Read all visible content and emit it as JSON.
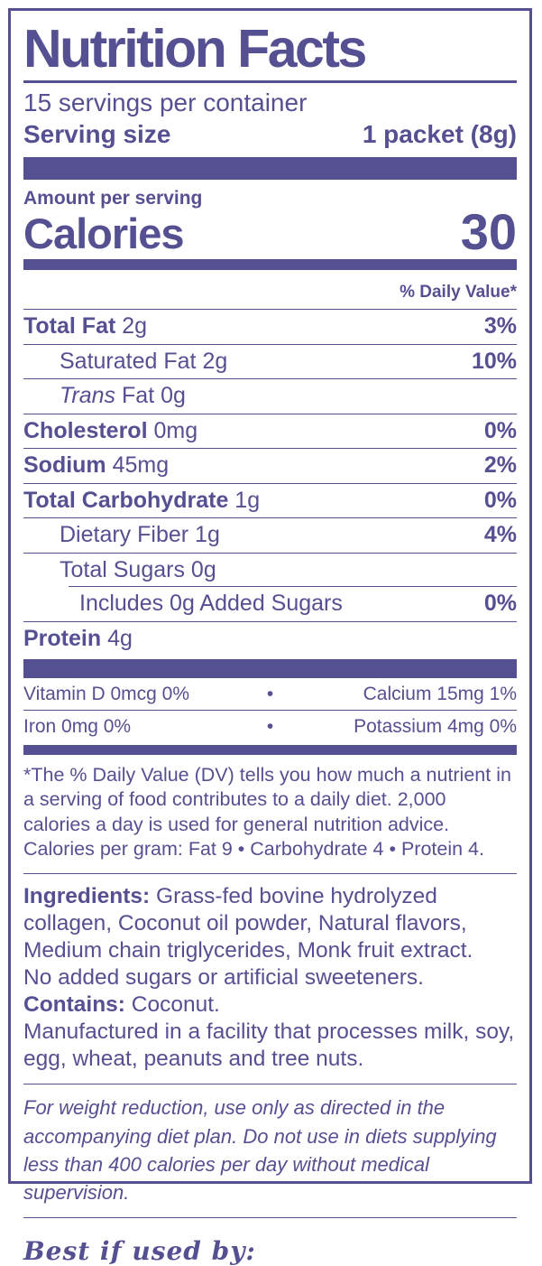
{
  "colors": {
    "accent": "#555091",
    "background": "#ffffff"
  },
  "header": {
    "title": "Nutrition Facts",
    "servings_per_container": "15 servings per container",
    "serving_size_label": "Serving size",
    "serving_size_value": "1 packet (8g)"
  },
  "calories": {
    "amount_per_serving_label": "Amount per serving",
    "label": "Calories",
    "value": "30"
  },
  "daily_value_header": "% Daily Value*",
  "nutrients": [
    {
      "name": "Total Fat",
      "amount": "2g",
      "dv": "3%",
      "bold": true,
      "italic": false,
      "indent": 0,
      "rule_indent": false
    },
    {
      "name": "Saturated Fat",
      "amount": "2g",
      "dv": "10%",
      "bold": false,
      "italic": false,
      "indent": 1,
      "rule_indent": false
    },
    {
      "name": "Trans",
      "amount": "Fat 0g",
      "dv": "",
      "bold": false,
      "italic": true,
      "indent": 1,
      "rule_indent": false
    },
    {
      "name": "Cholesterol",
      "amount": "0mg",
      "dv": "0%",
      "bold": true,
      "italic": false,
      "indent": 0,
      "rule_indent": false
    },
    {
      "name": "Sodium",
      "amount": "45mg",
      "dv": "2%",
      "bold": true,
      "italic": false,
      "indent": 0,
      "rule_indent": false
    },
    {
      "name": "Total Carbohydrate",
      "amount": "1g",
      "dv": "0%",
      "bold": true,
      "italic": false,
      "indent": 0,
      "rule_indent": false
    },
    {
      "name": "Dietary Fiber",
      "amount": "1g",
      "dv": "4%",
      "bold": false,
      "italic": false,
      "indent": 1,
      "rule_indent": false
    },
    {
      "name": "Total Sugars",
      "amount": "0g",
      "dv": "",
      "bold": false,
      "italic": false,
      "indent": 1,
      "rule_indent": true
    },
    {
      "name": "Includes 0g Added Sugars",
      "amount": "",
      "dv": "0%",
      "bold": false,
      "italic": false,
      "indent": 2,
      "rule_indent": false
    },
    {
      "name": "Protein",
      "amount": "4g",
      "dv": "",
      "bold": true,
      "italic": false,
      "indent": 0,
      "last": true
    }
  ],
  "micronutrients": {
    "separator": "•",
    "rows": [
      {
        "left": "Vitamin D 0mcg 0%",
        "right": "Calcium 15mg 1%"
      },
      {
        "left": "Iron 0mg 0%",
        "right": "Potassium 4mg 0%"
      }
    ]
  },
  "footnote": "*The % Daily Value (DV) tells you how much a nutrient in a serving of food contributes to a daily diet. 2,000 calories a day is used for general nutrition advice. Calories per gram: Fat 9 • Carbohydrate 4 • Protein 4.",
  "ingredients": {
    "label": "Ingredients:",
    "text": " Grass-fed bovine hydrolyzed collagen, Coconut oil powder, Natural flavors, Medium chain triglycerides, Monk fruit extract.",
    "no_sugar_note": "No added sugars or artificial sweeteners.",
    "contains_label": "Contains:",
    "contains_text": " Coconut.",
    "allergy_note": "Manufactured in a facility that processes milk, soy, egg, wheat, peanuts and tree nuts."
  },
  "diet_note": "For weight reduction, use only as directed in the accompanying diet plan. Do not use in diets supplying less than 400 calories per day without medical supervision.",
  "best_by_label": "Best if used by:"
}
